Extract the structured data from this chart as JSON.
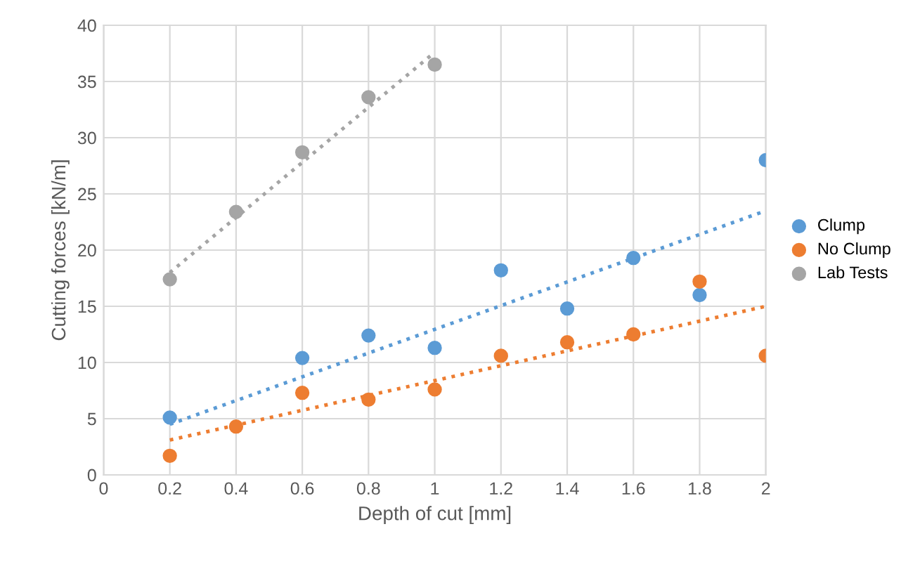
{
  "chart_data": {
    "type": "scatter",
    "xlabel": "Depth of cut [mm]",
    "ylabel": "Cutting forces [kN/m]",
    "xlim": [
      0,
      2
    ],
    "xticks": [
      0,
      0.2,
      0.4,
      0.6,
      0.8,
      1,
      1.2,
      1.4,
      1.6,
      1.8,
      2
    ],
    "ylim": [
      0,
      40
    ],
    "yticks": [
      0,
      5,
      10,
      15,
      20,
      25,
      30,
      35,
      40
    ],
    "grid": true,
    "legend": "right",
    "marker": "circle",
    "series": [
      {
        "name": "Clump",
        "color": "#5b9bd5",
        "x": [
          0.2,
          0.6,
          0.8,
          1.0,
          1.2,
          1.4,
          1.6,
          1.8,
          2.0
        ],
        "values": [
          5.1,
          10.4,
          12.4,
          11.3,
          18.2,
          14.8,
          19.3,
          16.0,
          28.0
        ]
      },
      {
        "name": "No Clump",
        "color": "#ed7d31",
        "x": [
          0.2,
          0.4,
          0.6,
          0.8,
          1.0,
          1.2,
          1.4,
          1.6,
          1.8,
          2.0
        ],
        "values": [
          1.7,
          4.3,
          7.3,
          6.7,
          7.6,
          10.6,
          11.8,
          12.5,
          17.2,
          10.6
        ]
      },
      {
        "name": "Lab Tests",
        "color": "#a5a5a5",
        "x": [
          0.2,
          0.4,
          0.6,
          0.8,
          1.0
        ],
        "values": [
          17.4,
          23.4,
          28.7,
          33.6,
          36.5
        ]
      },
      {
        "type": "line",
        "line_style": "dotted",
        "marker": "none",
        "color": "#5b9bd5",
        "x": [
          0.2,
          2.0
        ],
        "values": [
          4.5,
          23.5
        ]
      },
      {
        "type": "line",
        "line_style": "dotted",
        "marker": "none",
        "color": "#ed7d31",
        "x": [
          0.2,
          2.0
        ],
        "values": [
          3.1,
          15.0
        ]
      },
      {
        "type": "line",
        "line_style": "dotted",
        "marker": "none",
        "color": "#a5a5a5",
        "x": [
          0.2,
          1.0
        ],
        "values": [
          18.0,
          37.6
        ]
      }
    ]
  }
}
